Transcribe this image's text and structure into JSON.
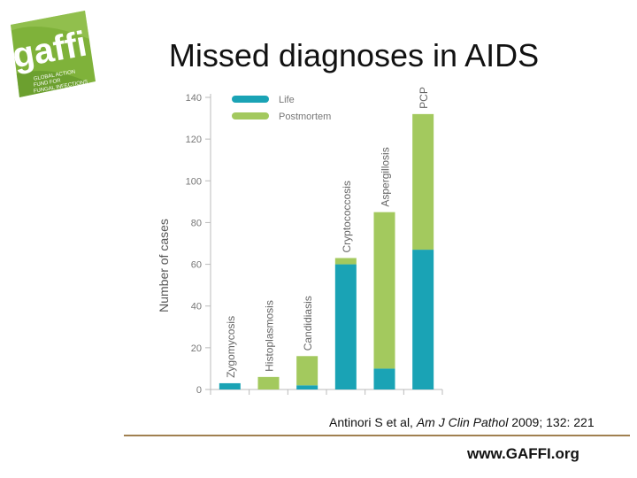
{
  "title": "Missed diagnoses in AIDS",
  "logo": {
    "text": "gaffi",
    "tagline": [
      "GLOBAL ACTION",
      "FUND FOR",
      "FUNGAL INFECTIONS"
    ]
  },
  "citation": {
    "prefix": "Antinori S et al, ",
    "journal": "Am J Clin Pathol",
    "suffix": " 2009; 132: 221"
  },
  "website": "www.GAFFI.org",
  "colors": {
    "life": "#1aa3b5",
    "postmortem": "#a3c95e",
    "rule": "#a08050"
  },
  "chart_data": {
    "type": "bar",
    "stacked": true,
    "categories": [
      "Zygomycosis",
      "Histoplasmosis",
      "Candidiasis",
      "Cryptococcosis",
      "Aspergillosis",
      "PCP"
    ],
    "series": [
      {
        "name": "Life",
        "values": [
          3,
          0,
          2,
          60,
          10,
          67
        ]
      },
      {
        "name": "Postmortem",
        "values": [
          0,
          6,
          14,
          3,
          75,
          65
        ]
      }
    ],
    "ylabel": "Number of cases",
    "yticks": [
      0,
      20,
      40,
      60,
      80,
      100,
      120,
      140
    ],
    "ylim": [
      0,
      140
    ],
    "legend_position": "top-left"
  }
}
